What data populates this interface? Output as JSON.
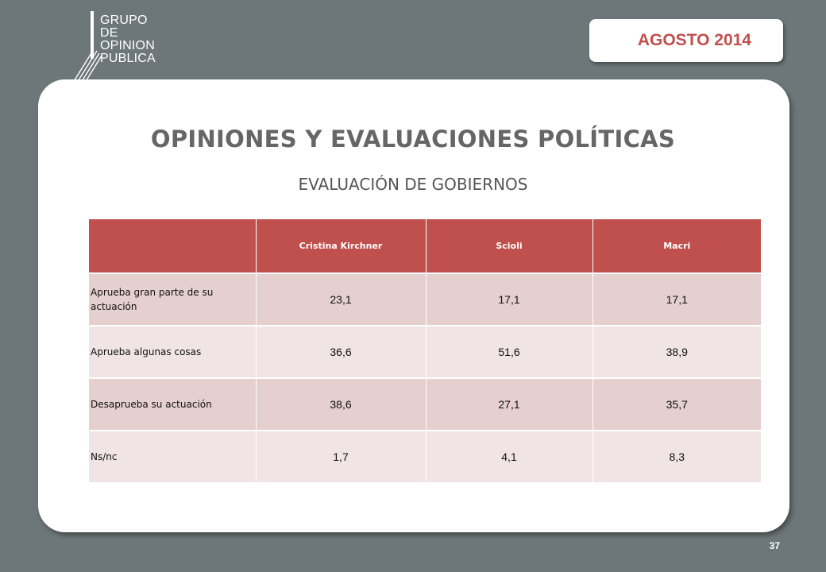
{
  "logo": {
    "lines": [
      "GRUPO",
      "DE",
      "OPINION",
      "PUBLICA"
    ]
  },
  "header": {
    "date_badge": "AGOSTO 2014"
  },
  "slide": {
    "title": "OPINIONES Y EVALUACIONES POLÍTICAS",
    "subtitle": "EVALUACIÓN DE GOBIERNOS"
  },
  "table": {
    "columns": [
      "",
      "Cristina Kirchner",
      "Scioli",
      "Macri"
    ],
    "rows": [
      {
        "label": "Aprueba gran parte de su actuación",
        "values": [
          "23,1",
          "17,1",
          "17,1"
        ]
      },
      {
        "label": "Aprueba algunas cosas",
        "values": [
          "36,6",
          "51,6",
          "38,9"
        ]
      },
      {
        "label": "Desaprueba su actuación",
        "values": [
          "38,6",
          "27,1",
          "35,7"
        ]
      },
      {
        "label": "Ns/nc",
        "values": [
          "1,7",
          "4,1",
          "8,3"
        ]
      }
    ]
  },
  "footer": {
    "page_number": "37"
  },
  "colors": {
    "background": "#6d7678",
    "accent": "#c0504d",
    "row_dark": "#e6cfcf",
    "row_light": "#f0e4e4"
  }
}
